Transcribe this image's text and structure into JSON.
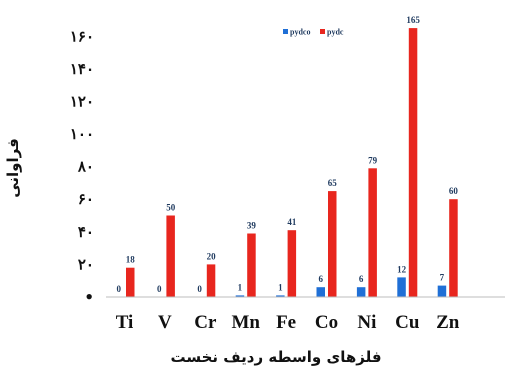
{
  "chart_data": {
    "type": "bar",
    "categories": [
      "Ti",
      "V",
      "Cr",
      "Mn",
      "Fe",
      "Co",
      "Ni",
      "Cu",
      "Zn"
    ],
    "series": [
      {
        "name": "pydco",
        "values": [
          0,
          0,
          0,
          1,
          1,
          6,
          6,
          12,
          7
        ],
        "color": "#1f6fd6"
      },
      {
        "name": "pydc",
        "values": [
          18,
          50,
          20,
          39,
          41,
          65,
          79,
          165,
          60
        ],
        "color": "#e8261e"
      }
    ],
    "data_labels": [
      [
        "0",
        "0",
        "0",
        "1",
        "1",
        "6",
        "6",
        "12",
        "7"
      ],
      [
        "18",
        "50",
        "20",
        "39",
        "41",
        "65",
        "79",
        "165",
        "60"
      ]
    ],
    "yticks": [
      0,
      20,
      40,
      60,
      80,
      100,
      120,
      140,
      160
    ],
    "ytick_labels": [
      "•",
      "۲۰",
      "۴۰",
      "۶۰",
      "۸۰",
      "۱۰۰",
      "۱۲۰",
      "۱۴۰",
      "۱۶۰"
    ],
    "ylim": [
      0,
      170
    ],
    "ylabel": "فراوانی",
    "xlabel": "فلزهای واسطه ردیف نخست",
    "legend": {
      "position": "top-center"
    },
    "grid": false
  }
}
